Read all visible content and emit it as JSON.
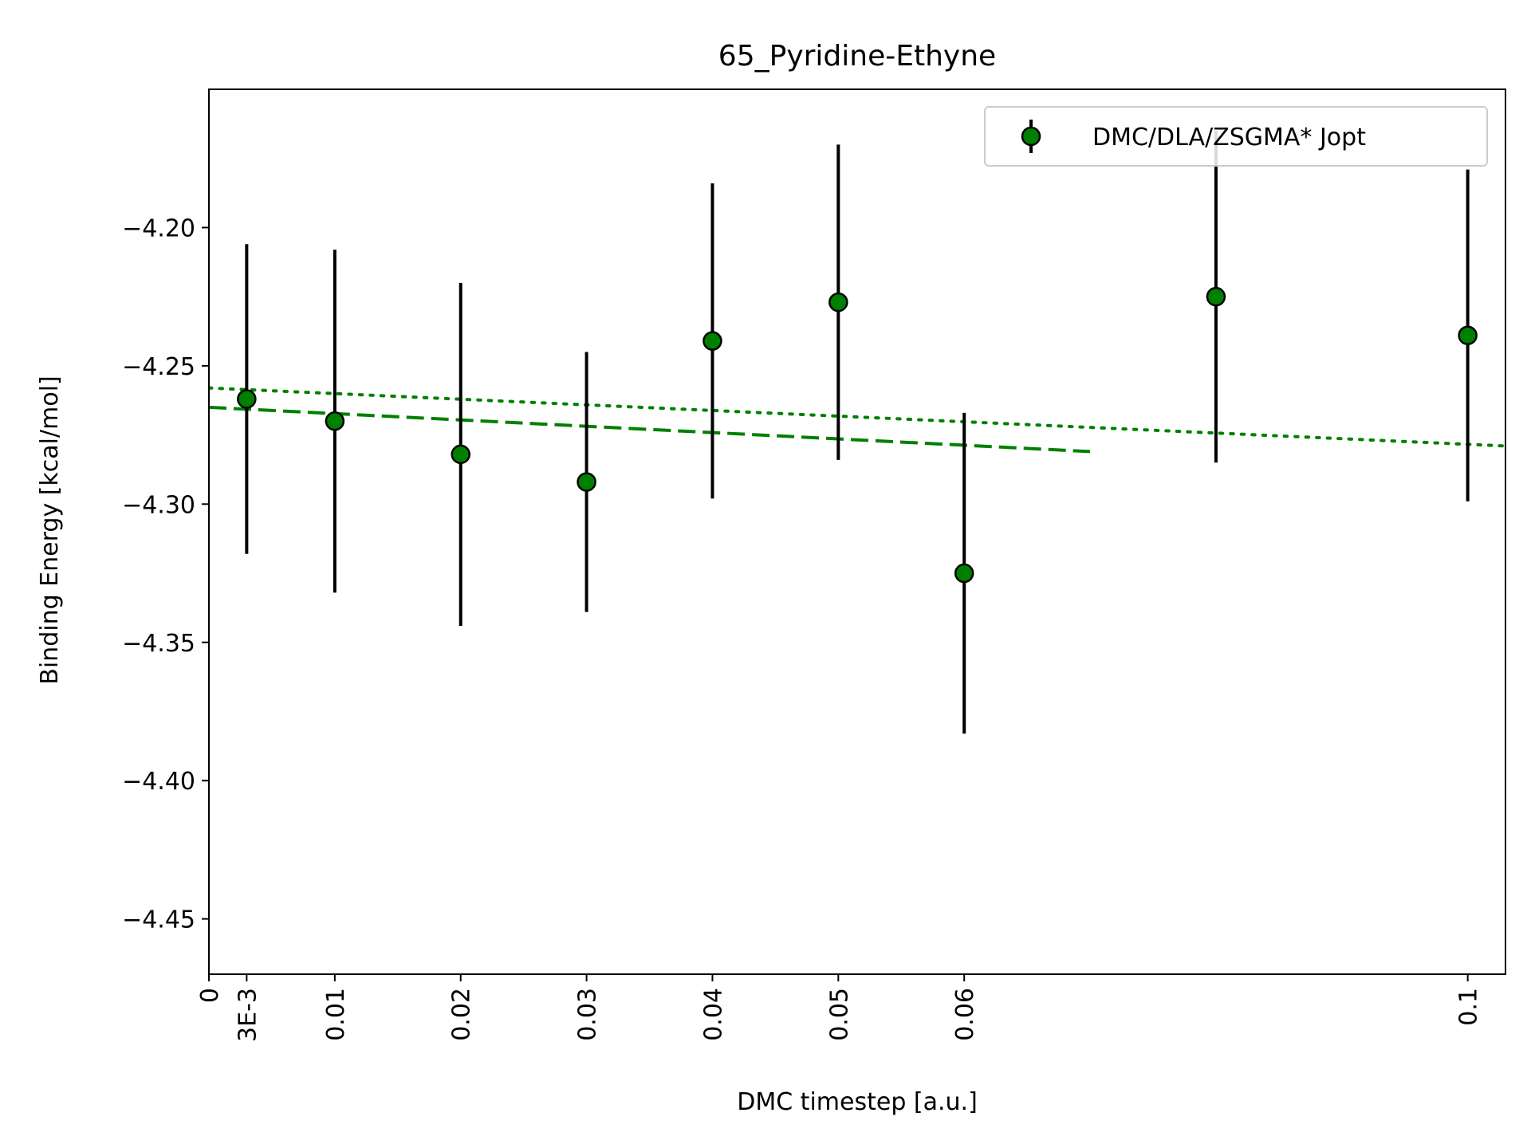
{
  "chart_data": {
    "type": "scatter",
    "title": "65_Pyridine-Ethyne",
    "xlabel": "DMC timestep [a.u.]",
    "ylabel": "Binding Energy [kcal/mol]",
    "xlim": [
      0,
      0.103
    ],
    "ylim": [
      -4.47,
      -4.15
    ],
    "x_ticks": [
      {
        "value": 0,
        "label": "0"
      },
      {
        "value": 0.003,
        "label": "3E-3"
      },
      {
        "value": 0.01,
        "label": "0.01"
      },
      {
        "value": 0.02,
        "label": "0.02"
      },
      {
        "value": 0.03,
        "label": "0.03"
      },
      {
        "value": 0.04,
        "label": "0.04"
      },
      {
        "value": 0.05,
        "label": "0.05"
      },
      {
        "value": 0.06,
        "label": "0.06"
      },
      {
        "value": 0.1,
        "label": "0.1"
      }
    ],
    "y_ticks": [
      {
        "value": -4.2,
        "label": "−4.20"
      },
      {
        "value": -4.25,
        "label": "−4.25"
      },
      {
        "value": -4.3,
        "label": "−4.30"
      },
      {
        "value": -4.35,
        "label": "−4.35"
      },
      {
        "value": -4.4,
        "label": "−4.40"
      },
      {
        "value": -4.45,
        "label": "−4.45"
      }
    ],
    "grid": false,
    "legend_position": "top-right",
    "series": [
      {
        "name": "DMC/DLA/ZSGMA* Jopt",
        "type": "errorbar",
        "color": "#008000",
        "marker_edge": "#000000",
        "errorbar_color": "#000000",
        "x": [
          0.003,
          0.01,
          0.02,
          0.03,
          0.04,
          0.05,
          0.06,
          0.08,
          0.1
        ],
        "y": [
          -4.262,
          -4.27,
          -4.282,
          -4.292,
          -4.241,
          -4.227,
          -4.325,
          -4.225,
          -4.239
        ],
        "yerr": [
          0.056,
          0.062,
          0.062,
          0.047,
          0.057,
          0.057,
          0.058,
          0.06,
          0.06
        ]
      }
    ],
    "fits": [
      {
        "style": "dashed",
        "color": "#008000",
        "x": [
          0,
          0.07
        ],
        "y": [
          -4.265,
          -4.281
        ]
      },
      {
        "style": "dotted",
        "color": "#008000",
        "x": [
          0,
          0.103
        ],
        "y": [
          -4.258,
          -4.279
        ]
      }
    ]
  }
}
